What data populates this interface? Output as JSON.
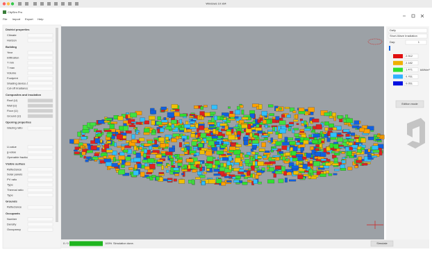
{
  "window": {
    "host_title": "Windows 10 x64",
    "app_title": "CitySim Pro",
    "menu": [
      "File",
      "Import",
      "Export",
      "Help"
    ]
  },
  "left_panel": {
    "sections": [
      {
        "title": "District properties",
        "rows": [
          "Climate",
          "Horizon"
        ]
      },
      {
        "title": "Building",
        "rows": [
          "Year",
          "Infiltration",
          "T min",
          "T max",
          "Volume",
          "Footprint",
          "Shading device ∆",
          "Cut-off irradiance"
        ]
      },
      {
        "title": "Composites and insulation",
        "rows": [
          "Roof (U)",
          "Wall (U)",
          "Floor (U)",
          "Ground (U)"
        ]
      },
      {
        "title": "Opening properties",
        "rows": [
          "Glazing ratio",
          "U-value",
          "g-value",
          "Openable fraction"
        ]
      },
      {
        "title": "Visible surface",
        "rows": [
          "Reflectance",
          "Solar panels",
          "PV ratio",
          "Type",
          "Thermal ratio",
          "Type"
        ]
      },
      {
        "title": "Grounds",
        "rows": [
          "Reflectance"
        ]
      },
      {
        "title": "Occupants",
        "rows": [
          "Number",
          "Density",
          "Occupancy"
        ]
      }
    ]
  },
  "right_panel": {
    "period": "Daily",
    "variable": "Short-Wave Irradiation",
    "day_label": "Day:",
    "day": "1",
    "legend": [
      {
        "color": "#e01010",
        "label": "2.912"
      },
      {
        "color": "#f0b000",
        "label": "2.182"
      },
      {
        "color": "#30e030",
        "label": "1.471"
      },
      {
        "color": "#30b0ff",
        "label": "0.761"
      },
      {
        "color": "#0010e0",
        "label": "0.051"
      }
    ],
    "unit": "kWh/m²",
    "button": "Edition mode"
  },
  "status": {
    "count": "0 / 0",
    "progress": "100%",
    "message": "Simulation done.",
    "button": "Simulate"
  }
}
